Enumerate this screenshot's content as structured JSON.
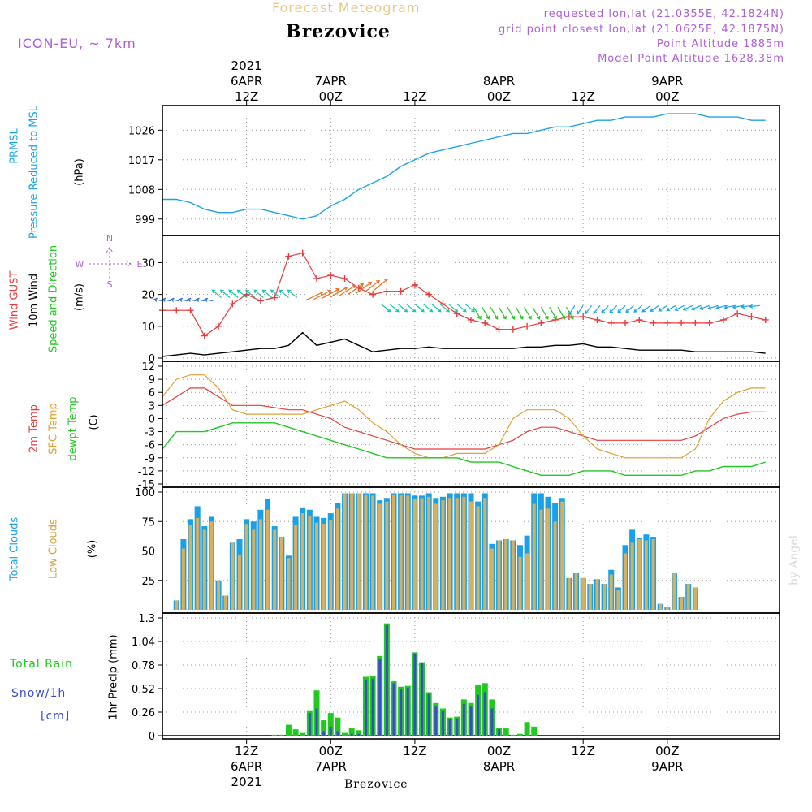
{
  "header": {
    "product": "Forecast Meteogram",
    "location": "Brezovice",
    "model": "ICON-EU, ~ 7km",
    "requested": "requested lon,lat (21.0355E, 42.1824N)",
    "grid_point": "grid point closest lon,lat (21.0625E, 42.1875N)",
    "point_altitude": "Point Altitude 1885m",
    "model_altitude": "Model Point Altitude 1628.38m"
  },
  "footer": {
    "location": "Brezovice",
    "credit": "by Angel"
  },
  "time_axis": {
    "ticks": [
      {
        "t": 12,
        "top": [
          "2021",
          "6APR",
          "12Z"
        ],
        "bottom": [
          "12Z",
          "6APR",
          "2021"
        ]
      },
      {
        "t": 24,
        "top": [
          "7APR",
          "00Z"
        ],
        "bottom": [
          "00Z",
          "7APR"
        ]
      },
      {
        "t": 36,
        "top": [
          "12Z"
        ],
        "bottom": [
          "12Z"
        ]
      },
      {
        "t": 48,
        "top": [
          "8APR",
          "00Z"
        ],
        "bottom": [
          "00Z",
          "8APR"
        ]
      },
      {
        "t": 60,
        "top": [
          "12Z"
        ],
        "bottom": [
          "12Z"
        ]
      },
      {
        "t": 72,
        "top": [
          "9APR",
          "00Z"
        ],
        "bottom": [
          "00Z",
          "9APR"
        ]
      }
    ]
  },
  "panels": {
    "pressure": {
      "label1": "PRMSL",
      "label2": "Pressure Reduced to MSL",
      "unit": "(hPa)"
    },
    "wind": {
      "label_gust": "Wind GUST",
      "label_wind": "10m Wind",
      "label_dir": "Speed and Direction",
      "unit": "(m/s)",
      "compass": {
        "n": "N",
        "s": "S",
        "w": "W",
        "e": "E"
      }
    },
    "temp": {
      "label_2m": "2m Temp",
      "label_sfc": "SFC Temp",
      "label_dew": "dewpt Temp",
      "unit": "(C)"
    },
    "clouds": {
      "label_total": "Total Clouds",
      "label_low": "Low Clouds",
      "unit": "(%)"
    },
    "precip": {
      "label_rain": "Total  Rain",
      "label_snow": "Snow/1h",
      "label_cm": "[cm]",
      "label_axis": "1hr Precip (mm)"
    }
  },
  "colors": {
    "pressure": "#1aa5e8",
    "gust": "#e83c3c",
    "wind": "#000000",
    "t2m": "#e83c3c",
    "sfc": "#e0a030",
    "dew": "#22c822",
    "total_clouds": "#1ba0e8",
    "low_clouds": "#d4b060",
    "rain": "#22c822",
    "snow": "#3a4ad0",
    "purple": "#b05ed6"
  },
  "chart_data": [
    {
      "type": "line",
      "name": "pressure",
      "ylim": [
        995,
        1032
      ],
      "yticks": [
        999,
        1008,
        1017,
        1026
      ],
      "x": [
        0,
        2,
        4,
        6,
        8,
        10,
        12,
        14,
        16,
        18,
        20,
        22,
        24,
        26,
        28,
        30,
        32,
        34,
        36,
        38,
        40,
        42,
        44,
        46,
        48,
        50,
        52,
        54,
        56,
        58,
        60,
        62,
        64,
        66,
        68,
        70,
        72,
        74,
        76,
        78,
        80,
        82,
        84,
        86
      ],
      "series": [
        {
          "values": [
            1005,
            1005,
            1004,
            1002,
            1001,
            1001,
            1002,
            1002,
            1001,
            1000,
            999,
            1000,
            1003,
            1005,
            1008,
            1010,
            1012,
            1015,
            1017,
            1019,
            1020,
            1021,
            1022,
            1023,
            1024,
            1025,
            1025,
            1026,
            1027,
            1027,
            1028,
            1029,
            1029,
            1030,
            1030,
            1030,
            1031,
            1031,
            1031,
            1030,
            1030,
            1030,
            1029,
            1029
          ]
        }
      ]
    },
    {
      "type": "line",
      "name": "wind",
      "ylim": [
        0,
        37
      ],
      "yticks": [
        0,
        10,
        20,
        30
      ],
      "x": [
        0,
        2,
        4,
        6,
        8,
        10,
        12,
        14,
        16,
        18,
        20,
        22,
        24,
        26,
        28,
        30,
        32,
        34,
        36,
        38,
        40,
        42,
        44,
        46,
        48,
        50,
        52,
        54,
        56,
        58,
        60,
        62,
        64,
        66,
        68,
        70,
        72,
        74,
        76,
        78,
        80,
        82,
        84,
        86
      ],
      "series": [
        {
          "name": "Wind GUST",
          "values": [
            15,
            15,
            15,
            7,
            10,
            17,
            20,
            18,
            19,
            32,
            33,
            25,
            26,
            25,
            22,
            20,
            21,
            21,
            23,
            20,
            17,
            14,
            12,
            11,
            9,
            9,
            10,
            11,
            12,
            13,
            13,
            12,
            11,
            11,
            12,
            11,
            11,
            11,
            11,
            11,
            12,
            14,
            13,
            12
          ]
        },
        {
          "name": "10m Wind",
          "values": [
            0.5,
            1,
            1.5,
            1,
            1.5,
            2,
            2.5,
            3,
            3,
            4,
            8,
            4,
            5,
            6,
            4,
            2,
            2.5,
            3,
            3,
            3.5,
            3,
            3,
            3,
            3,
            3,
            3,
            3.5,
            3.5,
            4,
            4,
            4.5,
            3.5,
            3.5,
            3,
            2.5,
            2.5,
            2.5,
            2.5,
            2,
            2,
            2,
            2,
            2,
            1.5
          ]
        }
      ]
    },
    {
      "type": "line",
      "name": "temperature",
      "ylim": [
        -15,
        12
      ],
      "yticks": [
        -15,
        -12,
        -9,
        -6,
        -3,
        0,
        3,
        6,
        9,
        12
      ],
      "x": [
        0,
        2,
        4,
        6,
        8,
        10,
        12,
        14,
        16,
        18,
        20,
        22,
        24,
        26,
        28,
        30,
        32,
        34,
        36,
        38,
        40,
        42,
        44,
        46,
        48,
        50,
        52,
        54,
        56,
        58,
        60,
        62,
        64,
        66,
        68,
        70,
        72,
        74,
        76,
        78,
        80,
        82,
        84,
        86
      ],
      "series": [
        {
          "name": "2m Temp",
          "values": [
            3,
            5,
            7,
            7,
            5,
            3,
            3,
            3,
            2.5,
            2,
            2,
            1,
            0,
            -2,
            -3,
            -4,
            -5,
            -6,
            -7,
            -7,
            -7,
            -7,
            -7,
            -7,
            -6,
            -5,
            -3,
            -2,
            -2,
            -3,
            -4,
            -5,
            -5,
            -5,
            -5,
            -5,
            -5,
            -5,
            -4,
            -2,
            0,
            1,
            1.5,
            1.5
          ]
        },
        {
          "name": "SFC Temp",
          "values": [
            5,
            9,
            10,
            10,
            7,
            2,
            1,
            1,
            1,
            1,
            1,
            2,
            3,
            4,
            2,
            -1,
            -3,
            -6,
            -8,
            -9,
            -9,
            -8,
            -8,
            -8,
            -6,
            0,
            2,
            2,
            2,
            0,
            -4,
            -7,
            -8,
            -9,
            -9,
            -9,
            -9,
            -9,
            -7,
            0,
            4,
            6,
            7,
            7
          ]
        },
        {
          "name": "dewpt Temp",
          "values": [
            -7,
            -3,
            -3,
            -3,
            -2,
            -1,
            -1,
            -1,
            -1,
            -2,
            -3,
            -4,
            -5,
            -6,
            -7,
            -8,
            -9,
            -9,
            -9,
            -9,
            -9,
            -9,
            -10,
            -10,
            -10,
            -11,
            -12,
            -13,
            -13,
            -13,
            -12,
            -12,
            -12,
            -13,
            -13,
            -13,
            -13,
            -13,
            -12,
            -12,
            -11,
            -11,
            -11,
            -10
          ]
        }
      ]
    },
    {
      "type": "bar",
      "name": "clouds",
      "ylim": [
        0,
        100
      ],
      "yticks": [
        25,
        50,
        75,
        100
      ],
      "x": [
        1,
        2,
        3,
        4,
        5,
        6,
        7,
        8,
        9,
        10,
        11,
        12,
        13,
        14,
        15,
        16,
        17,
        18,
        19,
        20,
        21,
        22,
        23,
        24,
        25,
        26,
        27,
        28,
        29,
        30,
        31,
        32,
        33,
        34,
        35,
        36,
        37,
        38,
        39,
        40,
        41,
        42,
        43,
        44,
        45,
        46,
        47,
        48,
        49,
        50,
        51,
        52,
        53,
        54,
        55,
        56,
        57,
        58,
        59,
        60,
        61,
        62,
        63,
        64,
        65,
        66,
        67,
        68,
        69,
        70,
        71,
        72,
        73,
        74,
        75,
        76,
        77,
        78,
        79,
        80,
        81,
        82,
        83,
        84,
        85,
        86,
        87
      ],
      "series": [
        {
          "name": "Total Clouds",
          "values": [
            0,
            8,
            60,
            77,
            88,
            71,
            79,
            25,
            12,
            57,
            60,
            77,
            75,
            85,
            94,
            71,
            62,
            46,
            79,
            87,
            85,
            79,
            78,
            82,
            91,
            99,
            99,
            99,
            99,
            99,
            93,
            95,
            99,
            99,
            99,
            97,
            97,
            99,
            95,
            96,
            99,
            99,
            99,
            99,
            92,
            99,
            56,
            59,
            60,
            59,
            55,
            63,
            99,
            99,
            96,
            91,
            95,
            27,
            31,
            27,
            22,
            26,
            22,
            34,
            19,
            55,
            68,
            61,
            64,
            62,
            5,
            2,
            31,
            11,
            22,
            19,
            0,
            0,
            0,
            0,
            0,
            0,
            0,
            0,
            0,
            0,
            0
          ]
        },
        {
          "name": "Low Clouds",
          "values": [
            0,
            8,
            52,
            72,
            78,
            68,
            75,
            25,
            12,
            57,
            47,
            73,
            68,
            77,
            85,
            68,
            62,
            44,
            72,
            82,
            80,
            74,
            73,
            76,
            86,
            99,
            99,
            99,
            98,
            97,
            90,
            92,
            98,
            98,
            97,
            94,
            95,
            96,
            90,
            93,
            95,
            95,
            96,
            92,
            88,
            95,
            52,
            59,
            60,
            59,
            45,
            48,
            90,
            85,
            86,
            75,
            92,
            27,
            31,
            27,
            22,
            26,
            22,
            30,
            17,
            48,
            57,
            60,
            59,
            60,
            5,
            2,
            31,
            11,
            22,
            19,
            0,
            0,
            0,
            0,
            0,
            0,
            0,
            0,
            0,
            0,
            0
          ]
        }
      ]
    },
    {
      "type": "bar",
      "name": "precipitation",
      "ylim": [
        0,
        1.3
      ],
      "yticks": [
        0,
        0.26,
        0.52,
        0.78,
        1.04,
        1.3
      ],
      "x": [
        16,
        17,
        18,
        19,
        20,
        21,
        22,
        23,
        24,
        25,
        26,
        27,
        28,
        29,
        30,
        31,
        32,
        33,
        34,
        35,
        36,
        37,
        38,
        39,
        40,
        41,
        42,
        43,
        44,
        45,
        46,
        47,
        48,
        49,
        50,
        51,
        52,
        53,
        54,
        55,
        56,
        57,
        58,
        59,
        60
      ],
      "series": [
        {
          "name": "Total Rain",
          "values": [
            0.01,
            0.01,
            0.12,
            0.07,
            0.03,
            0.28,
            0.5,
            0.17,
            0.25,
            0.2,
            0.03,
            0.08,
            0.06,
            0.65,
            0.66,
            0.88,
            1.24,
            0.6,
            0.54,
            0.55,
            0.92,
            0.81,
            0.48,
            0.36,
            0.3,
            0.2,
            0.21,
            0.4,
            0.36,
            0.56,
            0.58,
            0.4,
            0.09,
            0.08,
            0.01,
            0.02,
            0.15,
            0.1,
            0,
            0,
            0,
            0,
            0,
            0,
            0
          ]
        },
        {
          "name": "Snow/1h",
          "values": [
            0,
            0,
            0,
            0,
            0,
            0.25,
            0.3,
            0.05,
            0.1,
            0.05,
            0,
            0.02,
            0.02,
            0.62,
            0.63,
            0.85,
            1.22,
            0.58,
            0.52,
            0.53,
            0.9,
            0.8,
            0.46,
            0.32,
            0.27,
            0.18,
            0.19,
            0.35,
            0.32,
            0.45,
            0.48,
            0.3,
            0.07,
            0,
            0,
            0,
            0,
            0,
            0,
            0,
            0,
            0,
            0,
            0,
            0
          ]
        }
      ]
    }
  ]
}
